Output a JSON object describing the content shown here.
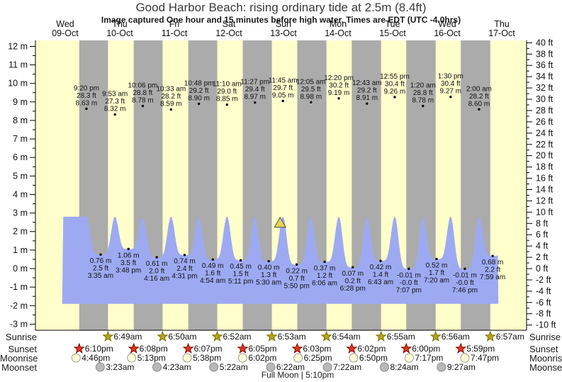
{
  "title": "Good Harbor Beach: rising ordinary tide at 2.5m (8.4ft)",
  "subtitle": "Image captured One hour and 15 minutes before high water. Times are EDT (UTC -4.0hrs)",
  "colors": {
    "day_bg": "#ffffcc",
    "night_band": "#ababab",
    "tide_fill": "#9daaf2",
    "date_text": "#ff0000",
    "axis_line": "#000000",
    "marker_fill": "#e8d44d",
    "sunrise_star": "#b3a61c",
    "sunset_star": "#e23222",
    "moonrise_fill": "#ffffd8",
    "moonset_fill": "#b9b9b9"
  },
  "chart_data": {
    "type": "area",
    "title": "Good Harbor Beach: rising ordinary tide at 2.5m (8.4ft)",
    "subtitle": "Image captured One hour and 15 minutes before high water. Times are EDT (UTC -4.0hrs)",
    "days": [
      {
        "name": "Wed",
        "date": "09-Oct"
      },
      {
        "name": "Thu",
        "date": "10-Oct"
      },
      {
        "name": "Fri",
        "date": "11-Oct"
      },
      {
        "name": "Sat",
        "date": "12-Oct"
      },
      {
        "name": "Sun",
        "date": "13-Oct"
      },
      {
        "name": "Mon",
        "date": "14-Oct"
      },
      {
        "name": "Tue",
        "date": "15-Oct"
      },
      {
        "name": "Wed",
        "date": "16-Oct"
      },
      {
        "name": "Thu",
        "date": "17-Oct"
      }
    ],
    "y_ticks_left": [
      "12 m",
      "11 m",
      "10 m",
      "9 m",
      "8 m",
      "7 m",
      "6 m",
      "5 m",
      "4 m",
      "3 m",
      "2 m",
      "1 m",
      "0 m",
      "-1 m",
      "-2 m",
      "-3 m"
    ],
    "y_ticks_right": [
      "40 ft",
      "38 ft",
      "36 ft",
      "34 ft",
      "32 ft",
      "30 ft",
      "28 ft",
      "26 ft",
      "24 ft",
      "22 ft",
      "20 ft",
      "18 ft",
      "16 ft",
      "14 ft",
      "12 ft",
      "10 ft",
      "8 ft",
      "6 ft",
      "4 ft",
      "2 ft",
      "0 ft",
      "-2 ft",
      "-4 ft",
      "-6 ft",
      "-8 ft",
      "-10 ft"
    ],
    "high_tides": [
      {
        "day": 0,
        "time": "9:20 pm",
        "ft": "28.3 ft",
        "m": "8.63 m"
      },
      {
        "day": 1,
        "time": "9:53 am",
        "ft": "27.3 ft",
        "m": "8.32 m"
      },
      {
        "day": 1,
        "time": "10:06 pm",
        "ft": "28.8 ft",
        "m": "8.78 m"
      },
      {
        "day": 2,
        "time": "10:33 am",
        "ft": "28.2 ft",
        "m": "8.59 m"
      },
      {
        "day": 2,
        "time": "10:48 pm",
        "ft": "29.2 ft",
        "m": "8.90 m"
      },
      {
        "day": 3,
        "time": "11:10 am",
        "ft": "29.0 ft",
        "m": "8.85 m"
      },
      {
        "day": 3,
        "time": "11:27 pm",
        "ft": "29.4 ft",
        "m": "8.97 m"
      },
      {
        "day": 4,
        "time": "11:45 am",
        "ft": "29.7 ft",
        "m": "9.05 m"
      },
      {
        "day": 5,
        "time": "12:05 am",
        "ft": "29.5 ft",
        "m": "8.98 m"
      },
      {
        "day": 5,
        "time": "12:20 pm",
        "ft": "30.2 ft",
        "m": "9.19 m"
      },
      {
        "day": 6,
        "time": "12:43 am",
        "ft": "29.2 ft",
        "m": "8.91 m"
      },
      {
        "day": 6,
        "time": "12:55 pm",
        "ft": "30.4 ft",
        "m": "9.26 m"
      },
      {
        "day": 7,
        "time": "1:20 am",
        "ft": "28.8 ft",
        "m": "8.78 m"
      },
      {
        "day": 7,
        "time": "1:30 pm",
        "ft": "30.4 ft",
        "m": "9.27 m"
      },
      {
        "day": 8,
        "time": "2:00 am",
        "ft": "28.2 ft",
        "m": "8.60 m"
      }
    ],
    "low_tides": [
      {
        "day": 1,
        "time": "3:35 am",
        "ft": "2.5 ft",
        "m": "0.76 m"
      },
      {
        "day": 1,
        "time": "3:48 pm",
        "ft": "3.5 ft",
        "m": "1.06 m"
      },
      {
        "day": 2,
        "time": "4:16 am",
        "ft": "2.0 ft",
        "m": "0.61 m"
      },
      {
        "day": 2,
        "time": "4:31 pm",
        "ft": "2.4 ft",
        "m": "0.74 m"
      },
      {
        "day": 3,
        "time": "4:54 am",
        "ft": "1.6 ft",
        "m": "0.49 m"
      },
      {
        "day": 3,
        "time": "5:11 pm",
        "ft": "1.5 ft",
        "m": "0.45 m"
      },
      {
        "day": 4,
        "time": "5:30 am",
        "ft": "1.3 ft",
        "m": "0.40 m"
      },
      {
        "day": 4,
        "time": "5:50 pm",
        "ft": "0.7 ft",
        "m": "0.22 m"
      },
      {
        "day": 5,
        "time": "6:06 am",
        "ft": "1.2 ft",
        "m": "0.37 m"
      },
      {
        "day": 5,
        "time": "6:28 pm",
        "ft": "0.2 ft",
        "m": "0.07 m"
      },
      {
        "day": 6,
        "time": "6:43 am",
        "ft": "1.4 ft",
        "m": "0.42 m"
      },
      {
        "day": 6,
        "time": "7:07 pm",
        "ft": "-0.0 ft",
        "m": "-0.01 m"
      },
      {
        "day": 7,
        "time": "7:20 am",
        "ft": "1.7 ft",
        "m": "0.52 m"
      },
      {
        "day": 7,
        "time": "7:46 pm",
        "ft": "-0.0 ft",
        "m": "-0.01 m"
      },
      {
        "day": 8,
        "time": "7:59 am",
        "ft": "2.2 ft",
        "m": "0.68 m"
      }
    ],
    "marker": {
      "day": 4,
      "time": "10:30 am",
      "height_m": 2.5
    },
    "display": {
      "peak_cap_m": 2.8,
      "base_m": -1.9,
      "start_t_h": 10.7,
      "end_t_h": 202.5,
      "lead_high_t_h": 8.9,
      "tail_high_t_h": 206.5
    }
  },
  "sun_moon": {
    "rows": [
      {
        "label": "Sunrise",
        "icon": "sunrise-star-icon",
        "events": [
          {
            "day": 1,
            "time": "6:49am"
          },
          {
            "day": 2,
            "time": "6:50am"
          },
          {
            "day": 3,
            "time": "6:52am"
          },
          {
            "day": 4,
            "time": "6:53am"
          },
          {
            "day": 5,
            "time": "6:54am"
          },
          {
            "day": 6,
            "time": "6:55am"
          },
          {
            "day": 7,
            "time": "6:56am"
          },
          {
            "day": 8,
            "time": "6:57am"
          }
        ]
      },
      {
        "label": "Sunset",
        "icon": "sunset-star-icon",
        "events": [
          {
            "day": 0,
            "time": "6:10pm"
          },
          {
            "day": 1,
            "time": "6:08pm"
          },
          {
            "day": 2,
            "time": "6:07pm"
          },
          {
            "day": 3,
            "time": "6:05pm"
          },
          {
            "day": 4,
            "time": "6:03pm"
          },
          {
            "day": 5,
            "time": "6:02pm"
          },
          {
            "day": 6,
            "time": "6:00pm"
          },
          {
            "day": 7,
            "time": "5:59pm"
          }
        ]
      },
      {
        "label": "Moonrise",
        "icon": "moonrise-circle-icon",
        "events": [
          {
            "day": 0,
            "time": "4:46pm"
          },
          {
            "day": 1,
            "time": "5:13pm"
          },
          {
            "day": 2,
            "time": "5:38pm"
          },
          {
            "day": 3,
            "time": "6:02pm"
          },
          {
            "day": 4,
            "time": "6:25pm"
          },
          {
            "day": 5,
            "time": "6:50pm"
          },
          {
            "day": 6,
            "time": "7:17pm"
          },
          {
            "day": 7,
            "time": "7:47pm"
          }
        ]
      },
      {
        "label": "Moonset",
        "icon": "moonset-circle-icon",
        "events": [
          {
            "day": 1,
            "time": "3:23am"
          },
          {
            "day": 2,
            "time": "4:23am"
          },
          {
            "day": 3,
            "time": "5:22am"
          },
          {
            "day": 4,
            "time": "6:22am"
          },
          {
            "day": 5,
            "time": "7:22am"
          },
          {
            "day": 6,
            "time": "8:24am"
          },
          {
            "day": 7,
            "time": "9:27am"
          }
        ]
      }
    ],
    "footer": "Full Moon | 5:10pm"
  }
}
